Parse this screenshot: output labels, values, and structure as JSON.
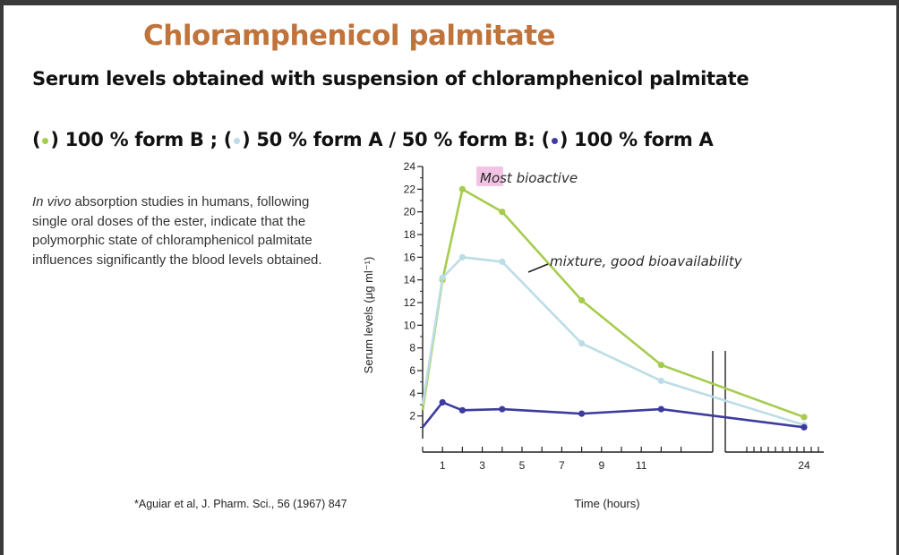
{
  "title": "Chloramphenicol palmitate",
  "subtitle": "Serum levels obtained with suspension of chloramphenicol palmitate",
  "legend_text": {
    "g_open": "(",
    "g_close": ") 100 % form B ; (",
    "c_close": ") 50 %  form A / 50 % form B: (",
    "b_close": ") 100 % form A"
  },
  "description": {
    "italic": "In vivo",
    "text": " absorption studies in humans, following single oral doses of the ester, indicate that the polymorphic state of chloramphenicol palmitate influences significantly the blood levels obtained."
  },
  "citation": "*Aguiar et al, J. Pharm. Sci., 56 (1967) 847",
  "annotations": {
    "most_bioactive": "Most  bioactive",
    "mixture": "mixture, good  bioavailability"
  },
  "colors": {
    "title": "#c0733a",
    "form_b": "#a6cc4e",
    "mixture": "#bcdde6",
    "form_a": "#3d3b9e",
    "highlight": "#f2c3e4"
  },
  "chart_data": {
    "type": "line",
    "xlabel": "Time (hours)",
    "ylabel": "Serum levels (μg ml⁻¹)",
    "x_ticks": [
      1,
      3,
      5,
      7,
      9,
      11,
      24
    ],
    "y_ticks": [
      2,
      4,
      6,
      8,
      10,
      12,
      14,
      16,
      18,
      20,
      22,
      24
    ],
    "xlim": [
      0,
      24
    ],
    "ylim": [
      0,
      24
    ],
    "axis_break": "between 12 and 24 hours",
    "series": [
      {
        "key": "form_b",
        "x": [
          0,
          1,
          2,
          4,
          8,
          12,
          24
        ],
        "y": [
          2.5,
          14.0,
          22.0,
          20.0,
          12.2,
          6.5,
          1.9
        ]
      },
      {
        "key": "mixture",
        "x": [
          0,
          1,
          2,
          4,
          8,
          12,
          24
        ],
        "y": [
          3.0,
          14.2,
          16.0,
          15.6,
          8.4,
          5.1,
          1.2
        ]
      },
      {
        "key": "form_a",
        "x": [
          0,
          1,
          2,
          4,
          8,
          12,
          24
        ],
        "y": [
          1.0,
          3.2,
          2.5,
          2.6,
          2.2,
          2.6,
          1.0
        ]
      }
    ]
  }
}
